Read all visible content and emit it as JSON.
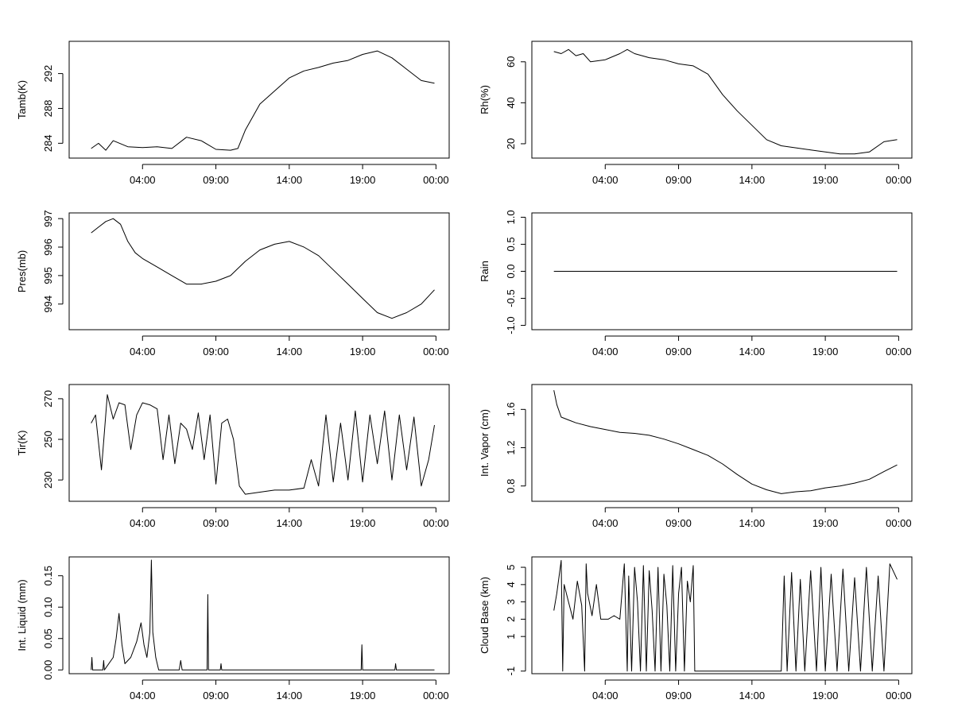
{
  "chart_data": [
    {
      "type": "line",
      "ylabel": "Tamb(K)",
      "x_ticks": [
        "04:00",
        "09:00",
        "14:00",
        "19:00",
        "00:00"
      ],
      "y_ticks": [
        284,
        288,
        292
      ],
      "ylim": [
        282.3,
        295.7
      ],
      "series": [
        {
          "name": "Tamb(K)",
          "x": [
            0.5,
            1,
            1.5,
            2,
            3,
            4,
            5,
            6,
            7,
            8,
            9,
            10,
            10.5,
            11,
            12,
            13,
            14,
            15,
            16,
            17,
            18,
            19,
            20,
            21,
            22,
            23,
            23.9
          ],
          "y": [
            283.4,
            284.0,
            283.2,
            284.3,
            283.6,
            283.5,
            283.6,
            283.4,
            284.7,
            284.3,
            283.3,
            283.2,
            283.4,
            285.5,
            288.5,
            290.0,
            291.5,
            292.3,
            292.7,
            293.2,
            293.5,
            294.2,
            294.6,
            293.8,
            292.5,
            291.2,
            290.9
          ]
        }
      ]
    },
    {
      "type": "line",
      "ylabel": "Rh(%)",
      "x_ticks": [
        "04:00",
        "09:00",
        "14:00",
        "19:00",
        "00:00"
      ],
      "y_ticks": [
        20,
        40,
        60
      ],
      "ylim": [
        13,
        70
      ],
      "series": [
        {
          "name": "Rh(%)",
          "x": [
            0.5,
            1,
            1.5,
            2,
            2.5,
            3,
            4,
            5,
            5.5,
            6,
            7,
            8,
            9,
            10,
            11,
            12,
            13,
            14,
            15,
            16,
            17,
            18,
            19,
            20,
            21,
            22,
            23,
            23.9
          ],
          "y": [
            65,
            64,
            66,
            63,
            64,
            60,
            61,
            64,
            66,
            64,
            62,
            61,
            59,
            58,
            54,
            44,
            36,
            29,
            22,
            19,
            18,
            17,
            16,
            15,
            15,
            16,
            21,
            22
          ]
        }
      ]
    },
    {
      "type": "line",
      "ylabel": "Pres(mb)",
      "x_ticks": [
        "04:00",
        "09:00",
        "14:00",
        "19:00",
        "00:00"
      ],
      "y_ticks": [
        994,
        995,
        996,
        997
      ],
      "ylim": [
        993.1,
        997.2
      ],
      "series": [
        {
          "name": "Pres(mb)",
          "x": [
            0.5,
            1,
            1.5,
            2,
            2.5,
            3,
            3.5,
            4,
            5,
            6,
            7,
            8,
            9,
            10,
            11,
            12,
            13,
            14,
            15,
            16,
            17,
            18,
            19,
            20,
            21,
            22,
            23,
            23.9
          ],
          "y": [
            996.5,
            996.7,
            996.9,
            997.0,
            996.8,
            996.2,
            995.8,
            995.6,
            995.3,
            995.0,
            994.7,
            994.7,
            994.8,
            995.0,
            995.5,
            995.9,
            996.1,
            996.2,
            996.0,
            995.7,
            995.2,
            994.7,
            994.2,
            993.7,
            993.5,
            993.7,
            994.0,
            994.5
          ]
        }
      ]
    },
    {
      "type": "line",
      "ylabel": "Rain",
      "x_ticks": [
        "04:00",
        "09:00",
        "14:00",
        "19:00",
        "00:00"
      ],
      "y_ticks": [
        "-1.0",
        "-0.5",
        "0.0",
        "0.5",
        "1.0"
      ],
      "ylim": [
        -1.08,
        1.08
      ],
      "series": [
        {
          "name": "Rain",
          "x": [
            0.5,
            23.9
          ],
          "y": [
            0,
            0
          ]
        }
      ]
    },
    {
      "type": "line",
      "ylabel": "Tir(K)",
      "x_ticks": [
        "04:00",
        "09:00",
        "14:00",
        "19:00",
        "00:00"
      ],
      "y_ticks": [
        230,
        250,
        270
      ],
      "ylim": [
        219.5,
        277
      ],
      "series": [
        {
          "name": "Tir(K)",
          "x": [
            0.5,
            0.8,
            1.2,
            1.6,
            2,
            2.4,
            2.8,
            3.2,
            3.6,
            4,
            4.5,
            5,
            5.4,
            5.8,
            6.2,
            6.6,
            7,
            7.4,
            7.8,
            8.2,
            8.6,
            9,
            9.4,
            9.8,
            10.2,
            10.6,
            11,
            12,
            13,
            14,
            15,
            15.5,
            16,
            16.5,
            17,
            17.5,
            18,
            18.5,
            19,
            19.5,
            20,
            20.5,
            21,
            21.5,
            22,
            22.5,
            23,
            23.5,
            23.9
          ],
          "y": [
            258,
            262,
            235,
            272,
            260,
            268,
            267,
            245,
            262,
            268,
            267,
            265,
            240,
            262,
            238,
            258,
            255,
            245,
            263,
            240,
            262,
            228,
            258,
            260,
            250,
            227,
            223,
            224,
            225,
            225,
            226,
            240,
            227,
            262,
            229,
            258,
            230,
            264,
            229,
            262,
            238,
            264,
            230,
            262,
            235,
            261,
            227,
            240,
            257
          ]
        }
      ]
    },
    {
      "type": "line",
      "ylabel": "Int. Vapor (cm)",
      "x_ticks": [
        "04:00",
        "09:00",
        "14:00",
        "19:00",
        "00:00"
      ],
      "y_ticks": [
        0.8,
        1.2,
        1.6
      ],
      "ylim": [
        0.64,
        1.86
      ],
      "series": [
        {
          "name": "Int. Vapor (cm)",
          "x": [
            0.5,
            0.7,
            1,
            1.5,
            2,
            3,
            4,
            5,
            6,
            7,
            8,
            9,
            10,
            11,
            12,
            13,
            14,
            15,
            16,
            17,
            18,
            19,
            20,
            21,
            22,
            23,
            23.9
          ],
          "y": [
            1.8,
            1.65,
            1.52,
            1.49,
            1.46,
            1.42,
            1.39,
            1.36,
            1.35,
            1.33,
            1.29,
            1.24,
            1.18,
            1.12,
            1.03,
            0.92,
            0.82,
            0.76,
            0.72,
            0.74,
            0.75,
            0.78,
            0.8,
            0.83,
            0.87,
            0.95,
            1.02
          ]
        }
      ]
    },
    {
      "type": "line",
      "ylabel": "Int. Liquid (mm)",
      "x_ticks": [
        "04:00",
        "09:00",
        "14:00",
        "19:00",
        "00:00"
      ],
      "y_ticks": [
        "0.00",
        "0.05",
        "0.10",
        "0.15"
      ],
      "ylim": [
        -0.006,
        0.18
      ],
      "series": [
        {
          "name": "Int. Liquid (mm)",
          "x": [
            0.5,
            0.55,
            0.6,
            1.3,
            1.35,
            1.4,
            2.0,
            2.2,
            2.4,
            2.6,
            2.8,
            3.2,
            3.6,
            3.9,
            4.1,
            4.3,
            4.5,
            4.6,
            4.7,
            4.9,
            5.1,
            6.5,
            6.6,
            6.7,
            8.4,
            8.45,
            8.5,
            9.3,
            9.35,
            9.4,
            18.9,
            18.95,
            19.0,
            21.2,
            21.25,
            21.3,
            23.9
          ],
          "y": [
            0,
            0.02,
            0,
            0,
            0.015,
            0,
            0.02,
            0.05,
            0.09,
            0.04,
            0.01,
            0.02,
            0.045,
            0.075,
            0.04,
            0.02,
            0.06,
            0.175,
            0.06,
            0.02,
            0,
            0,
            0.015,
            0,
            0,
            0.12,
            0,
            0,
            0.01,
            0,
            0,
            0.04,
            0,
            0,
            0.01,
            0,
            0
          ]
        }
      ]
    },
    {
      "type": "line",
      "ylabel": "Cloud Base (km)",
      "x_ticks": [
        "04:00",
        "09:00",
        "14:00",
        "19:00",
        "00:00"
      ],
      "y_ticks": [
        -1,
        1,
        2,
        3,
        4,
        5
      ],
      "ylim": [
        -1.15,
        5.6
      ],
      "series": [
        {
          "name": "Cloud Base (km)",
          "x": [
            0.5,
            0.7,
            1.0,
            1.1,
            1.2,
            1.5,
            1.8,
            2.1,
            2.4,
            2.6,
            2.7,
            2.8,
            3.1,
            3.4,
            3.7,
            4.2,
            4.6,
            5.0,
            5.3,
            5.5,
            5.6,
            5.8,
            6.0,
            6.2,
            6.4,
            6.6,
            6.8,
            7.0,
            7.2,
            7.4,
            7.6,
            7.8,
            8.0,
            8.2,
            8.4,
            8.6,
            8.8,
            9.0,
            9.2,
            9.4,
            9.6,
            9.8,
            10.0,
            10.1,
            16.0,
            16.2,
            16.4,
            16.7,
            17.0,
            17.3,
            17.6,
            18.0,
            18.4,
            18.7,
            19.0,
            19.4,
            19.8,
            20.2,
            20.6,
            21.0,
            21.4,
            21.8,
            22.2,
            22.6,
            23.0,
            23.4,
            23.9
          ],
          "y": [
            2.5,
            3.5,
            5.4,
            -1,
            4.0,
            3.0,
            2.0,
            4.2,
            2.8,
            -1,
            5.2,
            3.5,
            2.2,
            4.0,
            2.0,
            2.0,
            2.2,
            2.0,
            5.2,
            -1,
            4.5,
            -1,
            5.0,
            3.0,
            -1,
            5.1,
            -1,
            4.8,
            2.5,
            -1,
            5.0,
            -1,
            4.6,
            2.8,
            -1,
            5.1,
            -1,
            3.5,
            5.0,
            -1,
            4.2,
            3.0,
            5.1,
            -1,
            -1,
            4.5,
            -1,
            4.7,
            -1,
            4.3,
            -1,
            4.8,
            -1,
            5.0,
            -1,
            4.6,
            -1,
            4.9,
            -1,
            4.4,
            -1,
            5.0,
            -1,
            4.5,
            -1,
            5.2,
            4.3
          ]
        }
      ]
    }
  ]
}
